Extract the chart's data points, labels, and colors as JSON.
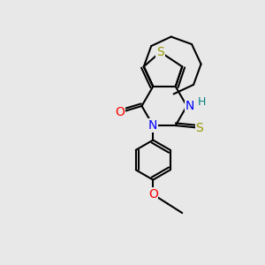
{
  "bg_color": "#e8e8e8",
  "bond_color": "#000000",
  "bond_width": 1.5,
  "atom_colors": {
    "S": "#999900",
    "N": "#0000ff",
    "O": "#ff0000",
    "H": "#008080",
    "C": "#000000"
  },
  "font_size_atoms": 10,
  "font_size_H": 9
}
